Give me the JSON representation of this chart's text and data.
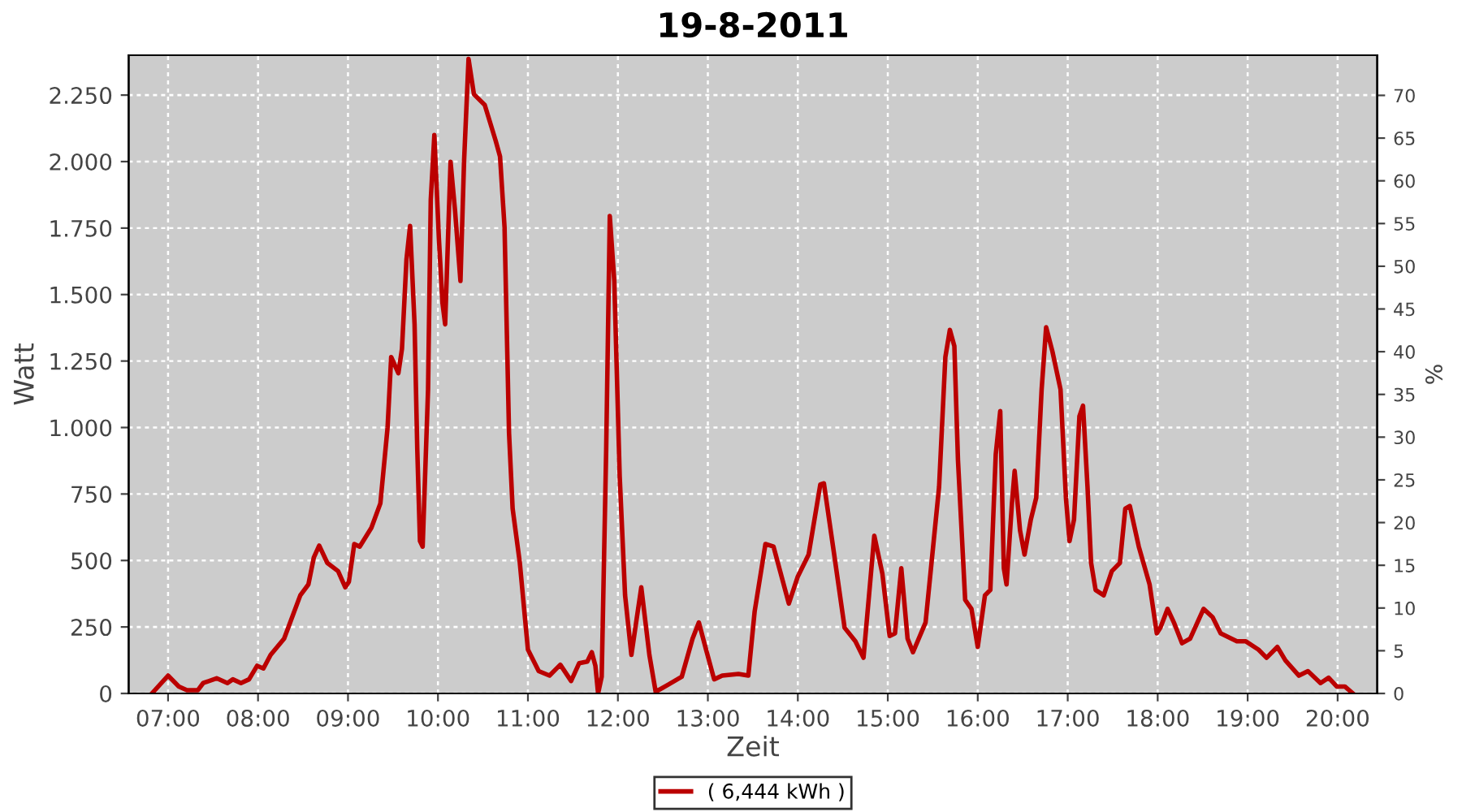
{
  "chart_data": {
    "type": "line",
    "title": "19-8-2011",
    "xlabel": "Zeit",
    "ylabel": "Watt",
    "y2label": "%",
    "xlim": [
      6.562,
      20.44
    ],
    "xticks": [
      {
        "value": 7,
        "label": "07:00"
      },
      {
        "value": 8,
        "label": "08:00"
      },
      {
        "value": 9,
        "label": "09:00"
      },
      {
        "value": 10,
        "label": "10:00"
      },
      {
        "value": 11,
        "label": "11:00"
      },
      {
        "value": 12,
        "label": "12:00"
      },
      {
        "value": 13,
        "label": "13:00"
      },
      {
        "value": 14,
        "label": "14:00"
      },
      {
        "value": 15,
        "label": "15:00"
      },
      {
        "value": 16,
        "label": "16:00"
      },
      {
        "value": 17,
        "label": "17:00"
      },
      {
        "value": 18,
        "label": "18:00"
      },
      {
        "value": 19,
        "label": "19:00"
      },
      {
        "value": 20,
        "label": "20:00"
      }
    ],
    "ylim": [
      0,
      2400
    ],
    "yticks": [
      0,
      250,
      500,
      750,
      {
        "value": 1000,
        "label": "1.000"
      },
      {
        "value": 1250,
        "label": "1.250"
      },
      {
        "value": 1500,
        "label": "1.500"
      },
      {
        "value": 1750,
        "label": "1.750"
      },
      {
        "value": 2000,
        "label": "2.000"
      },
      {
        "value": 2250,
        "label": "2.250"
      }
    ],
    "y2lim": [
      0,
      74.7
    ],
    "y2ticks": [
      0,
      5,
      10,
      15,
      20,
      25,
      30,
      35,
      40,
      45,
      50,
      55,
      60,
      65,
      70
    ],
    "grid": true,
    "legend": "bottom",
    "marker": "none",
    "line_style": "solid",
    "series": [
      {
        "name": "( 6,444 kWh )",
        "color": "#bb0000",
        "x": [
          6.82,
          7.0,
          7.12,
          7.21,
          7.33,
          7.39,
          7.54,
          7.66,
          7.72,
          7.81,
          7.9,
          7.99,
          8.06,
          8.14,
          8.29,
          8.47,
          8.56,
          8.62,
          8.68,
          8.77,
          8.89,
          8.97,
          9.01,
          9.07,
          9.13,
          9.26,
          9.36,
          9.44,
          9.48,
          9.56,
          9.6,
          9.65,
          9.69,
          9.74,
          9.77,
          9.8,
          9.83,
          9.89,
          9.92,
          9.96,
          10.01,
          10.05,
          10.08,
          10.14,
          10.19,
          10.25,
          10.29,
          10.34,
          10.4,
          10.52,
          10.64,
          10.69,
          10.74,
          10.79,
          10.83,
          10.91,
          11.0,
          11.12,
          11.24,
          11.36,
          11.48,
          11.57,
          11.66,
          11.71,
          11.75,
          11.78,
          11.82,
          11.87,
          11.91,
          11.96,
          12.02,
          12.08,
          12.15,
          12.26,
          12.35,
          12.42,
          12.56,
          12.71,
          12.83,
          12.9,
          12.98,
          13.07,
          13.16,
          13.34,
          13.45,
          13.52,
          13.64,
          13.73,
          13.9,
          14.0,
          14.12,
          14.25,
          14.29,
          14.4,
          14.52,
          14.64,
          14.73,
          14.85,
          14.94,
          15.02,
          15.08,
          15.15,
          15.22,
          15.28,
          15.42,
          15.57,
          15.64,
          15.69,
          15.74,
          15.78,
          15.86,
          15.93,
          16.0,
          16.08,
          16.14,
          16.2,
          16.25,
          16.29,
          16.32,
          16.38,
          16.41,
          16.47,
          16.52,
          16.59,
          16.65,
          16.71,
          16.76,
          16.83,
          16.92,
          16.98,
          17.02,
          17.07,
          17.13,
          17.17,
          17.22,
          17.26,
          17.31,
          17.4,
          17.49,
          17.58,
          17.64,
          17.69,
          17.79,
          17.91,
          17.99,
          18.03,
          18.11,
          18.18,
          18.27,
          18.36,
          18.51,
          18.61,
          18.7,
          18.88,
          18.98,
          19.12,
          19.21,
          19.33,
          19.42,
          19.57,
          19.67,
          19.81,
          19.9,
          19.99,
          20.08,
          20.17
        ],
        "values": [
          0,
          67,
          26,
          12,
          12,
          39,
          57,
          39,
          53,
          39,
          53,
          104,
          94,
          145,
          206,
          369,
          410,
          511,
          556,
          491,
          460,
          399,
          420,
          562,
          552,
          623,
          715,
          1000,
          1265,
          1204,
          1296,
          1632,
          1758,
          1388,
          919,
          573,
          552,
          1143,
          1856,
          2100,
          1713,
          1469,
          1388,
          1999,
          1815,
          1551,
          1999,
          2386,
          2253,
          2213,
          2080,
          2019,
          1754,
          980,
          695,
          491,
          165,
          84,
          67,
          108,
          47,
          114,
          120,
          155,
          104,
          0,
          63,
          919,
          1795,
          1551,
          817,
          369,
          145,
          399,
          145,
          6,
          33,
          63,
          206,
          267,
          165,
          53,
          67,
          73,
          67,
          308,
          562,
          552,
          338,
          440,
          522,
          786,
          790,
          532,
          247,
          196,
          134,
          593,
          450,
          216,
          226,
          471,
          206,
          155,
          267,
          776,
          1265,
          1367,
          1306,
          878,
          352,
          318,
          175,
          369,
          389,
          899,
          1062,
          471,
          410,
          715,
          837,
          613,
          522,
          654,
          736,
          1143,
          1377,
          1286,
          1143,
          736,
          573,
          654,
          1042,
          1082,
          776,
          491,
          389,
          369,
          460,
          491,
          695,
          705,
          552,
          410,
          226,
          247,
          318,
          267,
          189,
          206,
          318,
          287,
          226,
          196,
          196,
          165,
          134,
          175,
          124,
          67,
          84,
          39,
          59,
          26,
          26,
          0
        ]
      }
    ]
  }
}
